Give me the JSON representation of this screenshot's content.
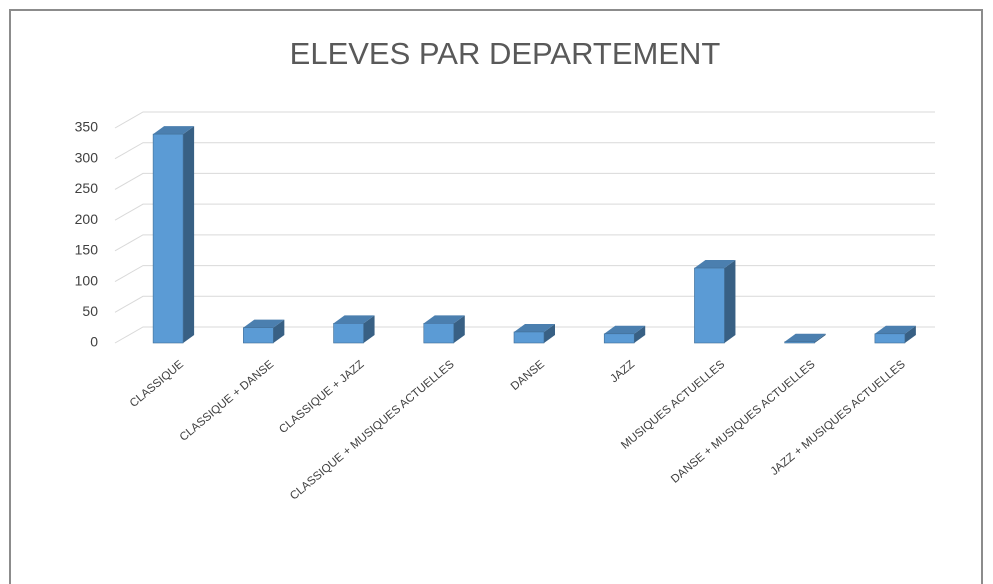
{
  "chart_data": {
    "type": "bar3d",
    "title": "ELEVES PAR DEPARTEMENT",
    "categories": [
      "CLASSIQUE",
      "CLASSIQUE + DANSE",
      "CLASSIQUE + JAZZ",
      "CLASSIQUE + MUSIQUES ACTUELLES",
      "DANSE",
      "JAZZ",
      "MUSIQUES ACTUELLES",
      "DANSE + MUSIQUES ACTUELLES",
      "JAZZ + MUSIQUES ACTUELLES"
    ],
    "values": [
      340,
      25,
      32,
      32,
      18,
      15,
      122,
      2,
      15
    ],
    "color": "#5b9bd5",
    "ylim": [
      0,
      350
    ],
    "yticks": [
      0,
      50,
      100,
      150,
      200,
      250,
      300,
      350
    ],
    "grid": true
  }
}
